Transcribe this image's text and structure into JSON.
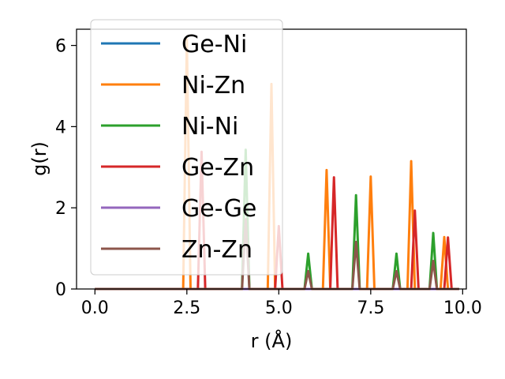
{
  "chart_data": {
    "type": "line",
    "xlabel": "r (Å)",
    "ylabel": "g(r)",
    "xlim": [
      -0.5,
      10.1
    ],
    "ylim": [
      0,
      6.4
    ],
    "xticks": [
      {
        "value": 0.0,
        "label": "0.0"
      },
      {
        "value": 2.5,
        "label": "2.5"
      },
      {
        "value": 5.0,
        "label": "5.0"
      },
      {
        "value": 7.5,
        "label": "7.5"
      },
      {
        "value": 10.0,
        "label": "10.0"
      }
    ],
    "yticks": [
      {
        "value": 0,
        "label": "0"
      },
      {
        "value": 2,
        "label": "2"
      },
      {
        "value": 4,
        "label": "4"
      },
      {
        "value": 6,
        "label": "6"
      }
    ],
    "grid": false,
    "legend_position": "upper-left",
    "x_range": [
      0,
      9.9
    ],
    "series": [
      {
        "name": "Ge-Ni",
        "color": "#1f77b4",
        "peaks": []
      },
      {
        "name": "Ni-Zn",
        "color": "#ff7f0e",
        "peaks": [
          [
            2.5,
            6.15
          ],
          [
            4.8,
            5.05
          ],
          [
            6.3,
            2.93
          ],
          [
            7.5,
            2.77
          ],
          [
            8.6,
            3.15
          ],
          [
            9.5,
            1.28
          ]
        ]
      },
      {
        "name": "Ni-Ni",
        "color": "#2ca02c",
        "peaks": [
          [
            4.1,
            3.43
          ],
          [
            5.8,
            0.87
          ],
          [
            7.1,
            2.31
          ],
          [
            8.2,
            0.87
          ],
          [
            9.2,
            1.38
          ]
        ]
      },
      {
        "name": "Ge-Zn",
        "color": "#d62728",
        "peaks": [
          [
            2.9,
            3.38
          ],
          [
            5.0,
            1.55
          ],
          [
            6.5,
            2.75
          ],
          [
            8.7,
            1.93
          ],
          [
            9.6,
            1.27
          ]
        ]
      },
      {
        "name": "Ge-Ge",
        "color": "#9467bd",
        "peaks": []
      },
      {
        "name": "Zn-Zn",
        "color": "#8c564b",
        "peaks": [
          [
            4.1,
            1.72
          ],
          [
            5.8,
            0.44
          ],
          [
            7.1,
            1.16
          ],
          [
            8.2,
            0.44
          ],
          [
            9.2,
            0.69
          ]
        ]
      }
    ]
  }
}
